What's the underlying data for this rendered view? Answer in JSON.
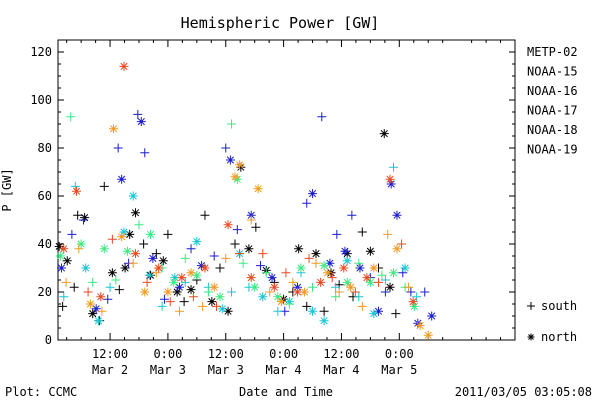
{
  "chart_data": {
    "type": "scatter",
    "title": "Hemispheric Power [GW]",
    "ylabel": "P [GW]",
    "xlabel": "Date and Time",
    "ylim": [
      0,
      125
    ],
    "yticks": [
      0,
      20,
      40,
      60,
      80,
      100,
      120
    ],
    "x_range_days": [
      1.05,
      5.0
    ],
    "x_ticks": [
      {
        "x": 1.5,
        "top": "12:00",
        "bottom": "Mar 2"
      },
      {
        "x": 2.0,
        "top": "0:00",
        "bottom": "Mar 3"
      },
      {
        "x": 2.5,
        "top": "12:00",
        "bottom": "Mar 3"
      },
      {
        "x": 3.0,
        "top": "0:00",
        "bottom": "Mar 4"
      },
      {
        "x": 3.5,
        "top": "12:00",
        "bottom": "Mar 4"
      },
      {
        "x": 4.0,
        "top": "0:00",
        "bottom": "Mar 5"
      }
    ],
    "legend_position": "right",
    "marker_legend": [
      {
        "symbol": "plus",
        "label": "south"
      },
      {
        "symbol": "star",
        "label": "north"
      }
    ],
    "series": [
      {
        "name": "METP-02",
        "color": "#000000",
        "points": [
          [
            1.06,
            39,
            "s"
          ],
          [
            1.09,
            14,
            "p"
          ],
          [
            1.13,
            33,
            "s"
          ],
          [
            1.19,
            22,
            "p"
          ],
          [
            1.22,
            52,
            "p"
          ],
          [
            1.28,
            51,
            "s"
          ],
          [
            1.35,
            11,
            "s"
          ],
          [
            1.41,
            8,
            "p"
          ],
          [
            1.45,
            64,
            "p"
          ],
          [
            1.52,
            28,
            "s"
          ],
          [
            1.58,
            21,
            "p"
          ],
          [
            1.63,
            30,
            "s"
          ],
          [
            1.67,
            44,
            "s"
          ],
          [
            1.72,
            53,
            "s"
          ],
          [
            1.79,
            40,
            "p"
          ],
          [
            1.85,
            27,
            "s"
          ],
          [
            1.9,
            36,
            "p"
          ],
          [
            1.96,
            33,
            "s"
          ],
          [
            2.0,
            44,
            "p"
          ],
          [
            2.08,
            20,
            "s"
          ],
          [
            2.14,
            16,
            "p"
          ],
          [
            2.2,
            21,
            "s"
          ],
          [
            2.25,
            25,
            "p"
          ],
          [
            2.32,
            52,
            "p"
          ],
          [
            2.38,
            16,
            "s"
          ],
          [
            2.45,
            30,
            "p"
          ],
          [
            2.52,
            12,
            "s"
          ],
          [
            2.58,
            40,
            "p"
          ],
          [
            2.63,
            72,
            "s"
          ],
          [
            2.7,
            38,
            "s"
          ],
          [
            2.76,
            47,
            "p"
          ],
          [
            2.85,
            29,
            "s"
          ],
          [
            2.92,
            24,
            "p"
          ],
          [
            3.0,
            17,
            "s"
          ],
          [
            3.08,
            20,
            "p"
          ],
          [
            3.13,
            38,
            "s"
          ],
          [
            3.2,
            14,
            "p"
          ],
          [
            3.28,
            36,
            "s"
          ],
          [
            3.35,
            12,
            "p"
          ],
          [
            3.41,
            28,
            "s"
          ],
          [
            3.48,
            23,
            "p"
          ],
          [
            3.55,
            36,
            "s"
          ],
          [
            3.6,
            18,
            "p"
          ],
          [
            3.68,
            45,
            "p"
          ],
          [
            3.75,
            37,
            "s"
          ],
          [
            3.82,
            30,
            "p"
          ],
          [
            3.87,
            86,
            "s"
          ],
          [
            3.92,
            22,
            "s"
          ],
          [
            3.97,
            11,
            "p"
          ]
        ]
      },
      {
        "name": "NOAA-15",
        "color": "#1c1ccf",
        "points": [
          [
            1.08,
            30,
            "s"
          ],
          [
            1.17,
            44,
            "p"
          ],
          [
            1.27,
            50,
            "p"
          ],
          [
            1.38,
            13,
            "s"
          ],
          [
            1.48,
            17,
            "p"
          ],
          [
            1.57,
            80,
            "p"
          ],
          [
            1.6,
            67,
            "s"
          ],
          [
            1.66,
            32,
            "p"
          ],
          [
            1.74,
            94,
            "p"
          ],
          [
            1.77,
            91,
            "s"
          ],
          [
            1.8,
            78,
            "p"
          ],
          [
            1.87,
            34,
            "s"
          ],
          [
            1.97,
            17,
            "p"
          ],
          [
            2.1,
            22,
            "s"
          ],
          [
            2.2,
            38,
            "p"
          ],
          [
            2.29,
            31,
            "s"
          ],
          [
            2.4,
            35,
            "p"
          ],
          [
            2.5,
            80,
            "p"
          ],
          [
            2.54,
            75,
            "s"
          ],
          [
            2.6,
            46,
            "p"
          ],
          [
            2.72,
            52,
            "s"
          ],
          [
            2.8,
            31,
            "p"
          ],
          [
            2.9,
            26,
            "s"
          ],
          [
            3.01,
            12,
            "p"
          ],
          [
            3.12,
            22,
            "s"
          ],
          [
            3.2,
            57,
            "p"
          ],
          [
            3.25,
            61,
            "s"
          ],
          [
            3.33,
            93,
            "p"
          ],
          [
            3.4,
            32,
            "s"
          ],
          [
            3.46,
            44,
            "p"
          ],
          [
            3.53,
            37,
            "s"
          ],
          [
            3.59,
            52,
            "p"
          ],
          [
            3.66,
            30,
            "s"
          ],
          [
            3.75,
            26,
            "p"
          ],
          [
            3.82,
            12,
            "s"
          ],
          [
            3.88,
            20,
            "p"
          ],
          [
            3.93,
            65,
            "s"
          ],
          [
            3.98,
            52,
            "s"
          ],
          [
            4.03,
            28,
            "p"
          ],
          [
            4.1,
            20,
            "p"
          ],
          [
            4.16,
            7,
            "s"
          ],
          [
            4.22,
            20,
            "p"
          ],
          [
            4.28,
            10,
            "s"
          ]
        ]
      },
      {
        "name": "NOAA-16",
        "color": "#18c6d6",
        "points": [
          [
            1.1,
            18,
            "p"
          ],
          [
            1.2,
            64,
            "p"
          ],
          [
            1.29,
            30,
            "s"
          ],
          [
            1.4,
            8,
            "s"
          ],
          [
            1.5,
            22,
            "p"
          ],
          [
            1.62,
            45,
            "s"
          ],
          [
            1.7,
            60,
            "s"
          ],
          [
            1.84,
            27,
            "s"
          ],
          [
            1.95,
            14,
            "p"
          ],
          [
            2.06,
            26,
            "s"
          ],
          [
            2.15,
            24,
            "p"
          ],
          [
            2.25,
            41,
            "s"
          ],
          [
            2.35,
            22,
            "p"
          ],
          [
            2.47,
            13,
            "s"
          ],
          [
            2.55,
            20,
            "p"
          ],
          [
            2.62,
            36,
            "s"
          ],
          [
            2.7,
            22,
            "p"
          ],
          [
            2.82,
            18,
            "s"
          ],
          [
            2.95,
            12,
            "p"
          ],
          [
            3.05,
            16,
            "s"
          ],
          [
            3.15,
            28,
            "p"
          ],
          [
            3.25,
            12,
            "s"
          ],
          [
            3.35,
            8,
            "s"
          ],
          [
            3.45,
            22,
            "p"
          ],
          [
            3.55,
            33,
            "s"
          ],
          [
            3.65,
            18,
            "p"
          ],
          [
            3.78,
            11,
            "s"
          ],
          [
            3.88,
            25,
            "p"
          ],
          [
            3.95,
            72,
            "p"
          ],
          [
            4.05,
            30,
            "s"
          ],
          [
            4.15,
            18,
            "p"
          ]
        ]
      },
      {
        "name": "NOAA-17",
        "color": "#3ee882",
        "points": [
          [
            1.07,
            35,
            "s"
          ],
          [
            1.16,
            93,
            "p"
          ],
          [
            1.25,
            40,
            "s"
          ],
          [
            1.35,
            24,
            "p"
          ],
          [
            1.45,
            38,
            "s"
          ],
          [
            1.55,
            25,
            "p"
          ],
          [
            1.65,
            37,
            "s"
          ],
          [
            1.75,
            48,
            "p"
          ],
          [
            1.85,
            44,
            "s"
          ],
          [
            1.95,
            30,
            "p"
          ],
          [
            2.05,
            24,
            "s"
          ],
          [
            2.15,
            34,
            "p"
          ],
          [
            2.25,
            27,
            "s"
          ],
          [
            2.35,
            20,
            "p"
          ],
          [
            2.45,
            18,
            "s"
          ],
          [
            2.55,
            90,
            "p"
          ],
          [
            2.6,
            67,
            "s"
          ],
          [
            2.65,
            32,
            "p"
          ],
          [
            2.75,
            22,
            "s"
          ],
          [
            2.85,
            28,
            "p"
          ],
          [
            2.95,
            18,
            "s"
          ],
          [
            3.05,
            15,
            "p"
          ],
          [
            3.15,
            30,
            "s"
          ],
          [
            3.25,
            22,
            "p"
          ],
          [
            3.35,
            31,
            "s"
          ],
          [
            3.45,
            18,
            "p"
          ],
          [
            3.55,
            24,
            "s"
          ],
          [
            3.65,
            32,
            "p"
          ],
          [
            3.75,
            24,
            "s"
          ],
          [
            3.85,
            27,
            "p"
          ],
          [
            3.95,
            28,
            "s"
          ],
          [
            4.05,
            22,
            "p"
          ],
          [
            4.13,
            14,
            "s"
          ]
        ]
      },
      {
        "name": "NOAA-18",
        "color": "#f29a22",
        "points": [
          [
            1.12,
            24,
            "p"
          ],
          [
            1.23,
            38,
            "p"
          ],
          [
            1.33,
            15,
            "s"
          ],
          [
            1.43,
            12,
            "p"
          ],
          [
            1.53,
            88,
            "s"
          ],
          [
            1.6,
            43,
            "s"
          ],
          [
            1.7,
            32,
            "p"
          ],
          [
            1.8,
            20,
            "s"
          ],
          [
            1.9,
            28,
            "p"
          ],
          [
            2.0,
            20,
            "s"
          ],
          [
            2.1,
            12,
            "p"
          ],
          [
            2.2,
            28,
            "s"
          ],
          [
            2.3,
            14,
            "p"
          ],
          [
            2.4,
            22,
            "s"
          ],
          [
            2.5,
            34,
            "p"
          ],
          [
            2.58,
            68,
            "s"
          ],
          [
            2.62,
            73,
            "s"
          ],
          [
            2.72,
            50,
            "p"
          ],
          [
            2.78,
            63,
            "s"
          ],
          [
            2.88,
            20,
            "p"
          ],
          [
            2.98,
            16,
            "s"
          ],
          [
            3.08,
            24,
            "p"
          ],
          [
            3.18,
            20,
            "s"
          ],
          [
            3.28,
            32,
            "p"
          ],
          [
            3.38,
            28,
            "s"
          ],
          [
            3.48,
            20,
            "p"
          ],
          [
            3.58,
            22,
            "s"
          ],
          [
            3.68,
            14,
            "p"
          ],
          [
            3.78,
            30,
            "s"
          ],
          [
            3.9,
            44,
            "p"
          ],
          [
            3.98,
            38,
            "s"
          ],
          [
            4.08,
            22,
            "p"
          ],
          [
            4.18,
            6,
            "s"
          ],
          [
            4.25,
            2,
            "s"
          ]
        ]
      },
      {
        "name": "NOAA-19",
        "color": "#ea4a22",
        "points": [
          [
            1.1,
            38,
            "s"
          ],
          [
            1.21,
            62,
            "s"
          ],
          [
            1.31,
            20,
            "p"
          ],
          [
            1.42,
            18,
            "s"
          ],
          [
            1.52,
            42,
            "p"
          ],
          [
            1.62,
            114,
            "s"
          ],
          [
            1.72,
            36,
            "s"
          ],
          [
            1.82,
            24,
            "p"
          ],
          [
            1.92,
            30,
            "s"
          ],
          [
            2.02,
            16,
            "p"
          ],
          [
            2.12,
            26,
            "s"
          ],
          [
            2.22,
            18,
            "p"
          ],
          [
            2.32,
            30,
            "s"
          ],
          [
            2.42,
            14,
            "p"
          ],
          [
            2.52,
            48,
            "s"
          ],
          [
            2.62,
            36,
            "p"
          ],
          [
            2.72,
            26,
            "s"
          ],
          [
            2.82,
            36,
            "p"
          ],
          [
            2.92,
            22,
            "s"
          ],
          [
            3.02,
            28,
            "p"
          ],
          [
            3.12,
            20,
            "s"
          ],
          [
            3.22,
            34,
            "p"
          ],
          [
            3.32,
            24,
            "s"
          ],
          [
            3.42,
            26,
            "p"
          ],
          [
            3.52,
            30,
            "s"
          ],
          [
            3.62,
            20,
            "p"
          ],
          [
            3.72,
            26,
            "s"
          ],
          [
            3.82,
            24,
            "p"
          ],
          [
            3.92,
            67,
            "s"
          ],
          [
            4.02,
            40,
            "p"
          ],
          [
            4.12,
            16,
            "s"
          ]
        ]
      }
    ]
  },
  "footer": {
    "left": "Plot: CCMC",
    "center": "Date and Time",
    "right": "2011/03/05 03:05:08"
  }
}
